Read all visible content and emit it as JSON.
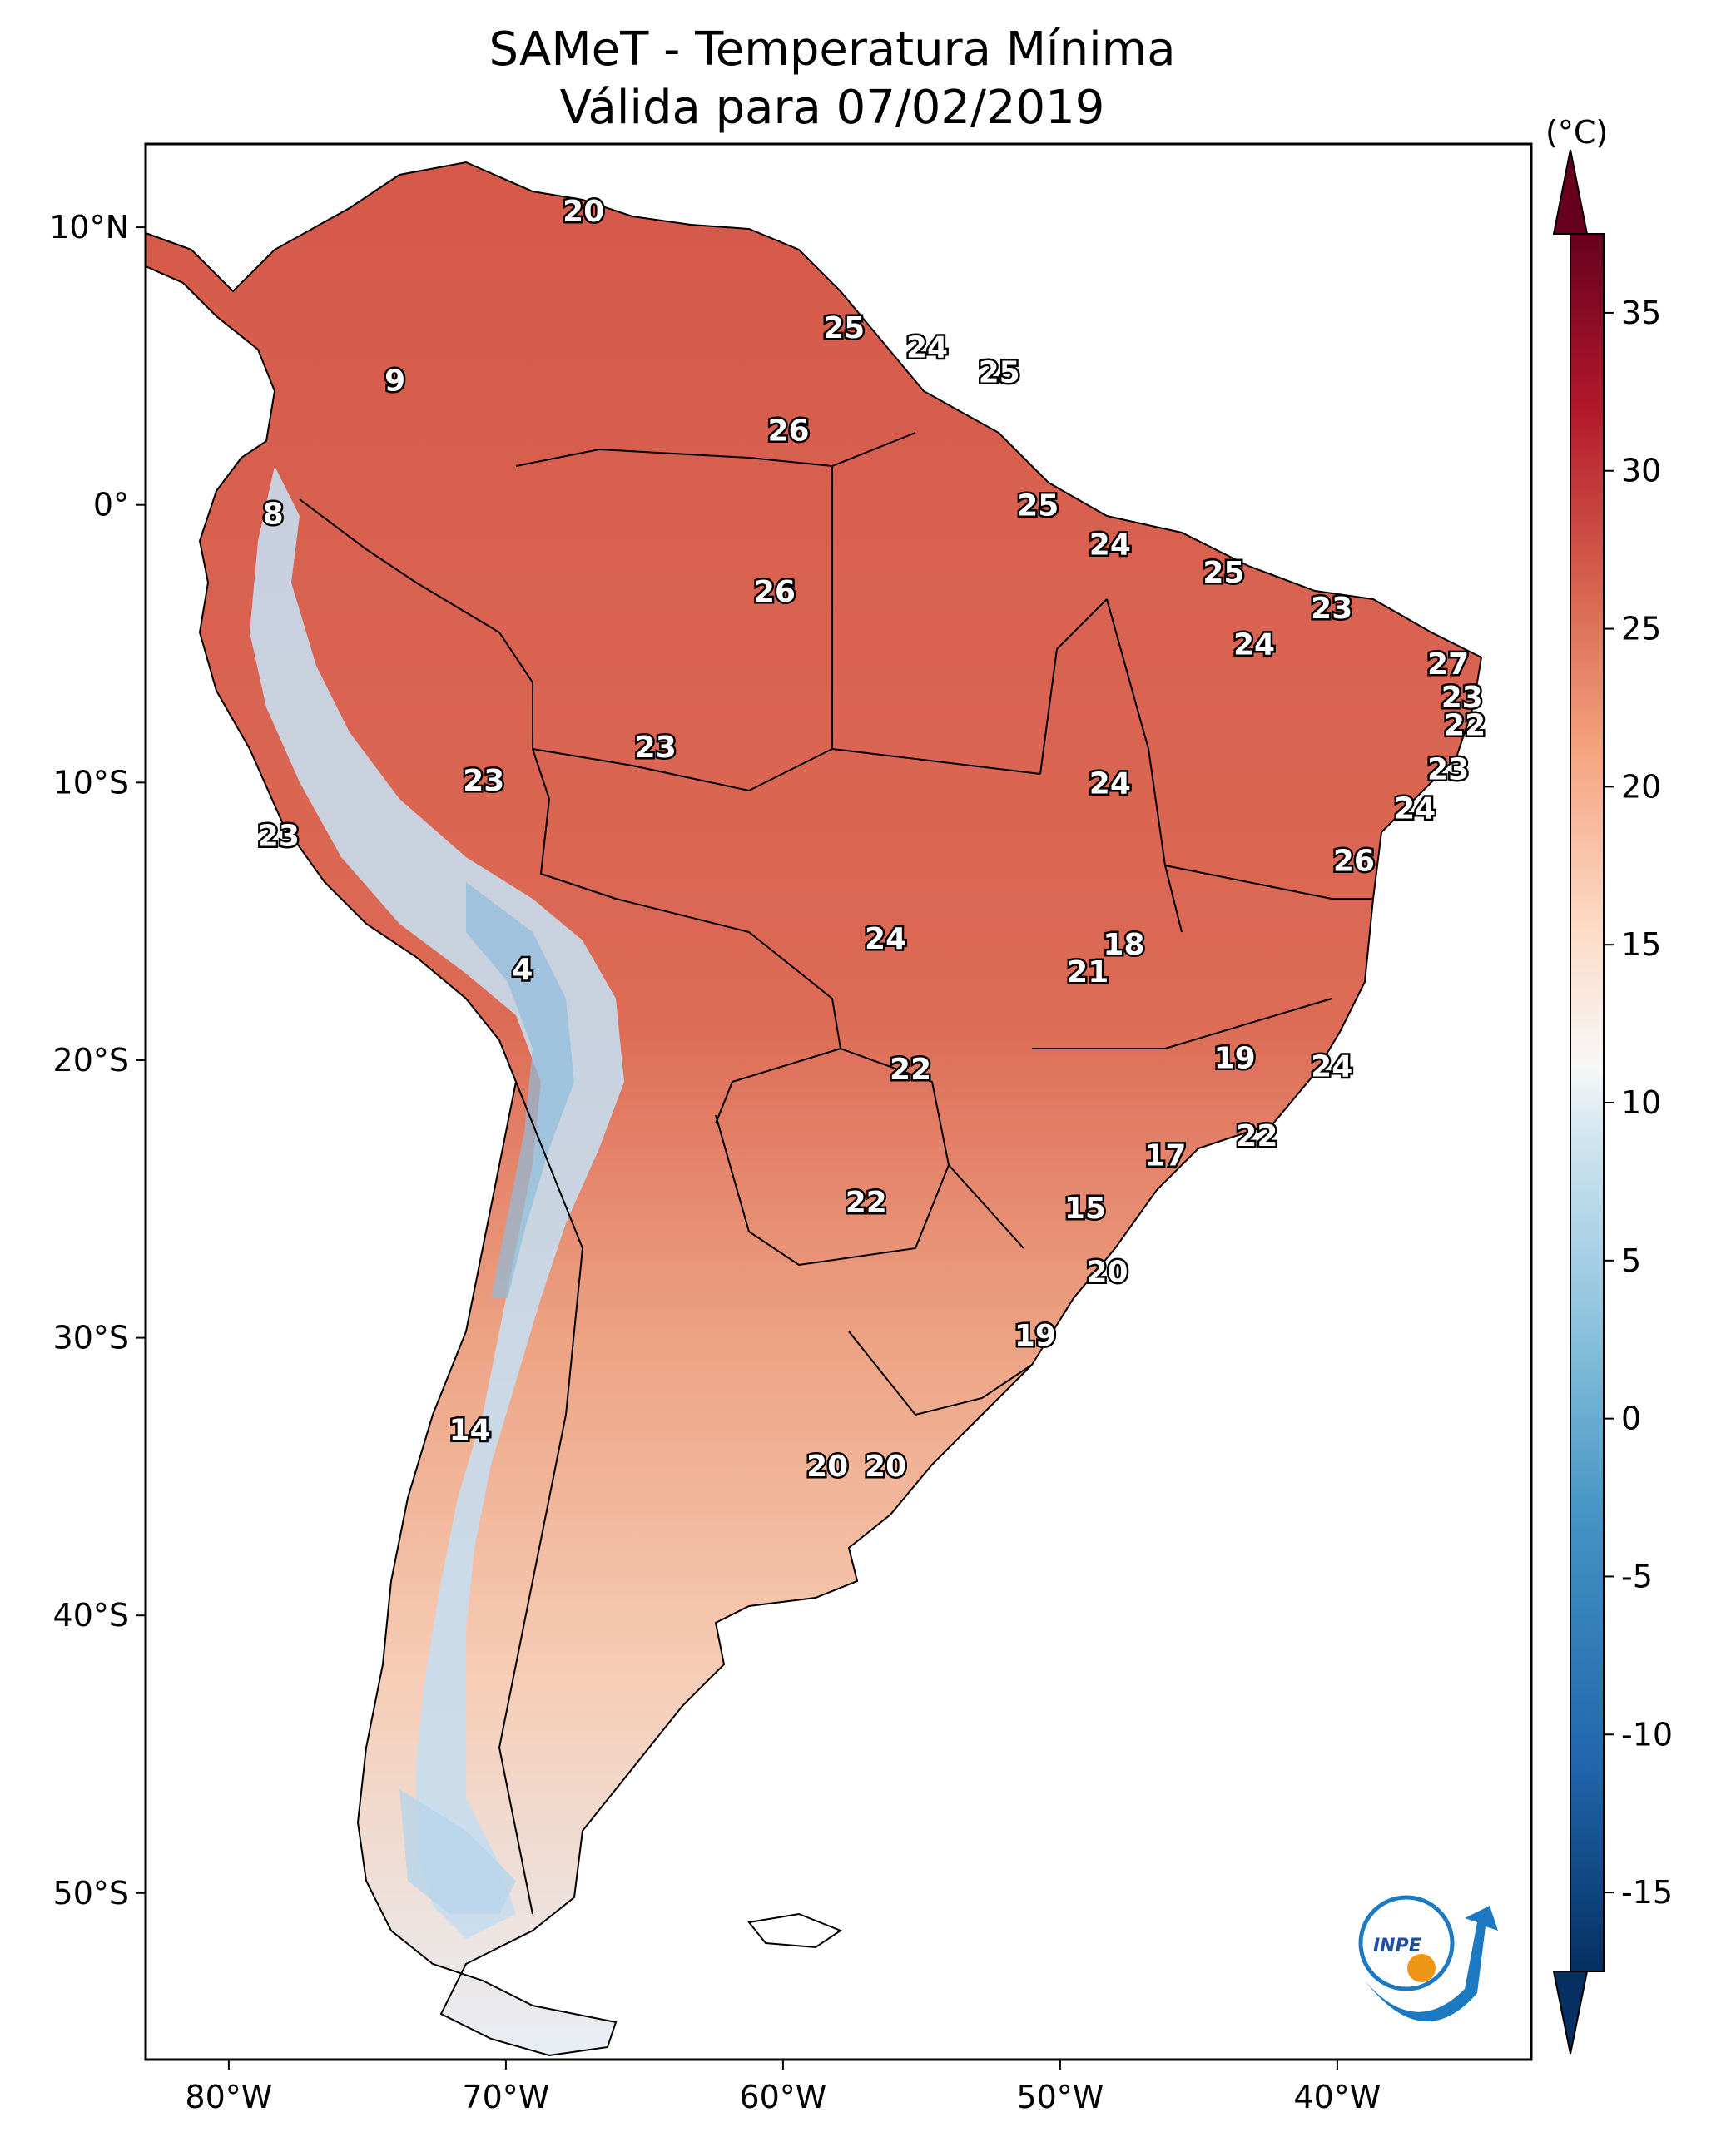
{
  "title_line1": "SAMeT - Temperatura Mínima",
  "title_line2": "Válida para 07/02/2019",
  "colorbar": {
    "unit": "(°C)",
    "ticks": [
      "35",
      "30",
      "25",
      "20",
      "15",
      "10",
      "5",
      "0",
      "-5",
      "-10",
      "-15"
    ]
  },
  "axes": {
    "lon_labels": [
      "80°W",
      "70°W",
      "60°W",
      "50°W",
      "40°W"
    ],
    "lat_labels": [
      "10°N",
      "0°",
      "10°S",
      "20°S",
      "30°S",
      "40°S",
      "50°S"
    ]
  },
  "logo_text": "INPE",
  "colors": {
    "warm_land": "#dc5e4a",
    "cold_andes": "#b9d6ea",
    "mild_south": "#f3bba0",
    "frame": "#000000"
  },
  "temperature_labels": [
    {
      "value": "20",
      "lon": -67.2,
      "lat": 10.6
    },
    {
      "value": "9",
      "lon": -74.0,
      "lat": 4.5
    },
    {
      "value": "25",
      "lon": -57.8,
      "lat": 6.4
    },
    {
      "value": "24",
      "lon": -54.8,
      "lat": 5.7
    },
    {
      "value": "25",
      "lon": -52.2,
      "lat": 4.8
    },
    {
      "value": "26",
      "lon": -59.8,
      "lat": 2.7
    },
    {
      "value": "8",
      "lon": -78.4,
      "lat": -0.3
    },
    {
      "value": "25",
      "lon": -50.8,
      "lat": 0.0
    },
    {
      "value": "24",
      "lon": -48.2,
      "lat": -1.4
    },
    {
      "value": "25",
      "lon": -44.1,
      "lat": -2.4
    },
    {
      "value": "26",
      "lon": -60.3,
      "lat": -3.1
    },
    {
      "value": "23",
      "lon": -40.2,
      "lat": -3.7
    },
    {
      "value": "24",
      "lon": -43.0,
      "lat": -5.0
    },
    {
      "value": "27",
      "lon": -36.0,
      "lat": -5.7
    },
    {
      "value": "23",
      "lon": -35.5,
      "lat": -6.9
    },
    {
      "value": "22",
      "lon": -35.4,
      "lat": -7.9
    },
    {
      "value": "23",
      "lon": -64.6,
      "lat": -8.7
    },
    {
      "value": "23",
      "lon": -70.8,
      "lat": -9.9
    },
    {
      "value": "24",
      "lon": -48.2,
      "lat": -10.0
    },
    {
      "value": "23",
      "lon": -36.0,
      "lat": -9.5
    },
    {
      "value": "24",
      "lon": -37.2,
      "lat": -10.9
    },
    {
      "value": "23",
      "lon": -78.2,
      "lat": -11.9
    },
    {
      "value": "26",
      "lon": -39.4,
      "lat": -12.8
    },
    {
      "value": "24",
      "lon": -56.3,
      "lat": -15.6
    },
    {
      "value": "18",
      "lon": -47.7,
      "lat": -15.8
    },
    {
      "value": "21",
      "lon": -49.0,
      "lat": -16.8
    },
    {
      "value": "4",
      "lon": -69.4,
      "lat": -16.7
    },
    {
      "value": "19",
      "lon": -43.7,
      "lat": -19.9
    },
    {
      "value": "22",
      "lon": -55.4,
      "lat": -20.3
    },
    {
      "value": "24",
      "lon": -40.2,
      "lat": -20.2
    },
    {
      "value": "22",
      "lon": -42.9,
      "lat": -22.7
    },
    {
      "value": "17",
      "lon": -46.2,
      "lat": -23.4
    },
    {
      "value": "22",
      "lon": -57.0,
      "lat": -25.1
    },
    {
      "value": "15",
      "lon": -49.1,
      "lat": -25.3
    },
    {
      "value": "20",
      "lon": -48.3,
      "lat": -27.6
    },
    {
      "value": "19",
      "lon": -50.9,
      "lat": -29.9
    },
    {
      "value": "14",
      "lon": -71.3,
      "lat": -33.3
    },
    {
      "value": "20",
      "lon": -58.4,
      "lat": -34.6
    },
    {
      "value": "20",
      "lon": -56.3,
      "lat": -34.6
    }
  ]
}
